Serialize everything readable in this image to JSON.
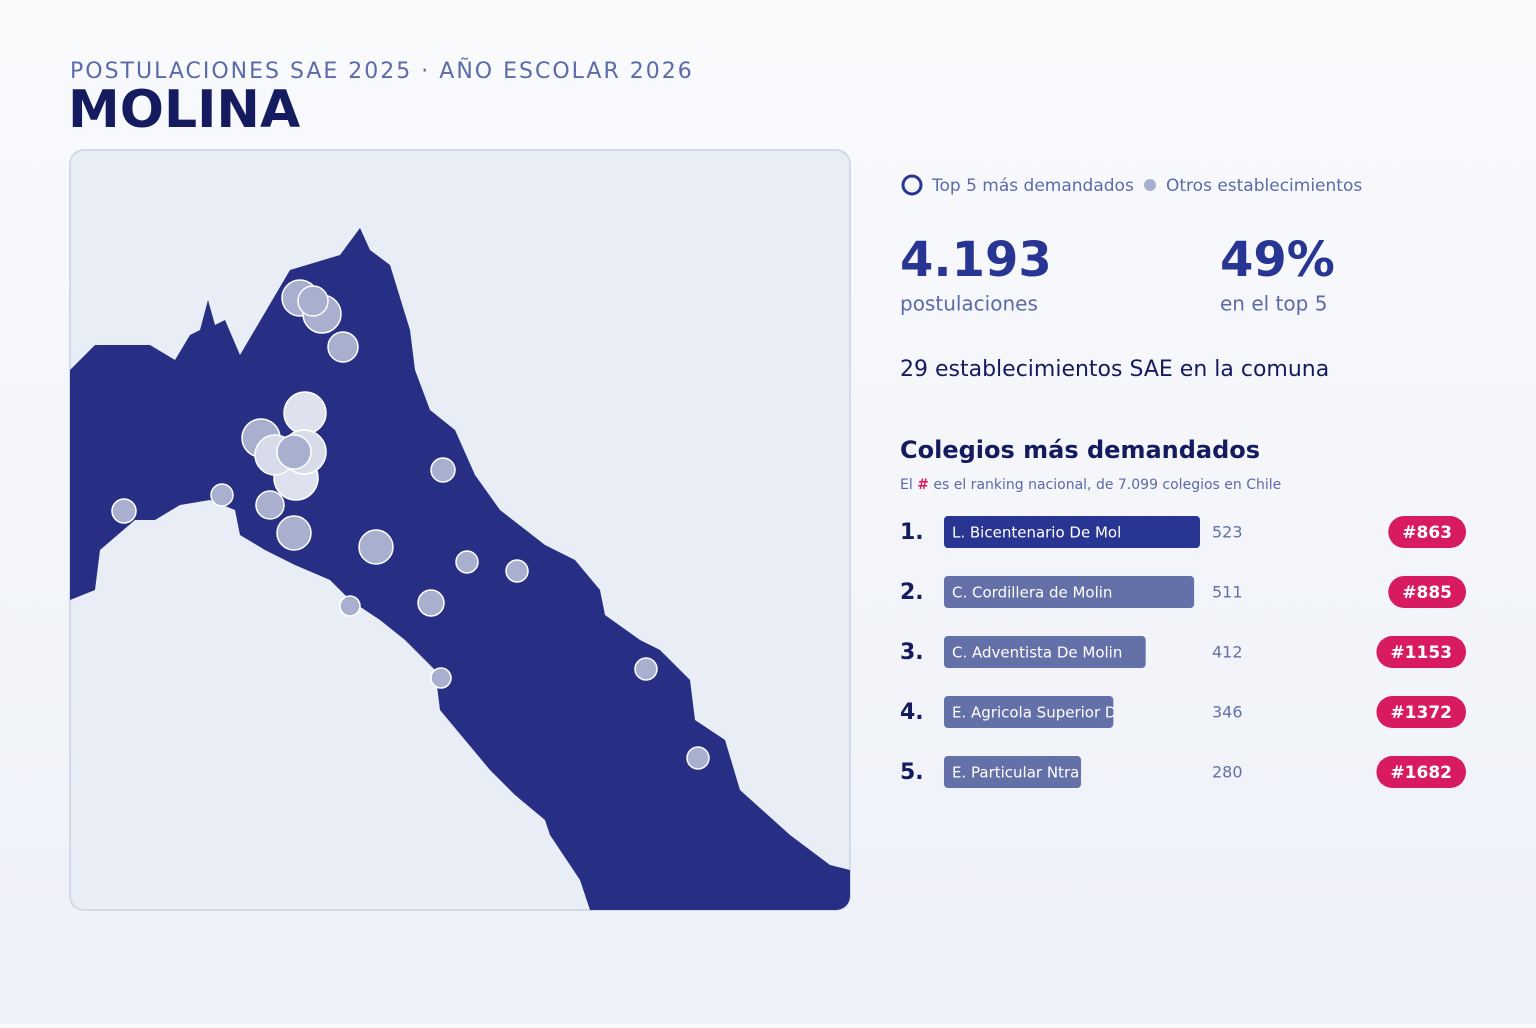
{
  "header": {
    "kicker": "POSTULACIONES SAE 2025 · AÑO ESCOLAR 2026",
    "title": "MOLINA"
  },
  "legend": {
    "top": "Top 5 más demandados",
    "others": "Otros establecimientos"
  },
  "stats": [
    {
      "value": "4.193",
      "label": "postulaciones"
    },
    {
      "value": "49%",
      "label": "en el top 5"
    }
  ],
  "count_text": "29 establecimientos SAE en la comuna",
  "ranking": {
    "title": "Colegios más demandados",
    "note": {
      "before": "El ",
      "mark": "#",
      "after": " es el ranking nacional, de 7.099 colegios en Chile"
    },
    "colors": [
      "#283593",
      "#6470a8",
      "#6470a8",
      "#6470a8",
      "#6470a8"
    ],
    "items": [
      {
        "rank": "1.",
        "name": "L. Bicentenario De Mol",
        "value": 523,
        "national": "#863"
      },
      {
        "rank": "2.",
        "name": "C. Cordillera de Molin",
        "value": 511,
        "national": "#885"
      },
      {
        "rank": "3.",
        "name": "C. Adventista De Molin",
        "value": 412,
        "national": "#1153"
      },
      {
        "rank": "4.",
        "name": "E. Agricola Superior D",
        "value": 346,
        "national": "#1372"
      },
      {
        "rank": "5.",
        "name": "E. Particular Ntra.",
        "value": 280,
        "national": "#1682"
      }
    ]
  }
}
